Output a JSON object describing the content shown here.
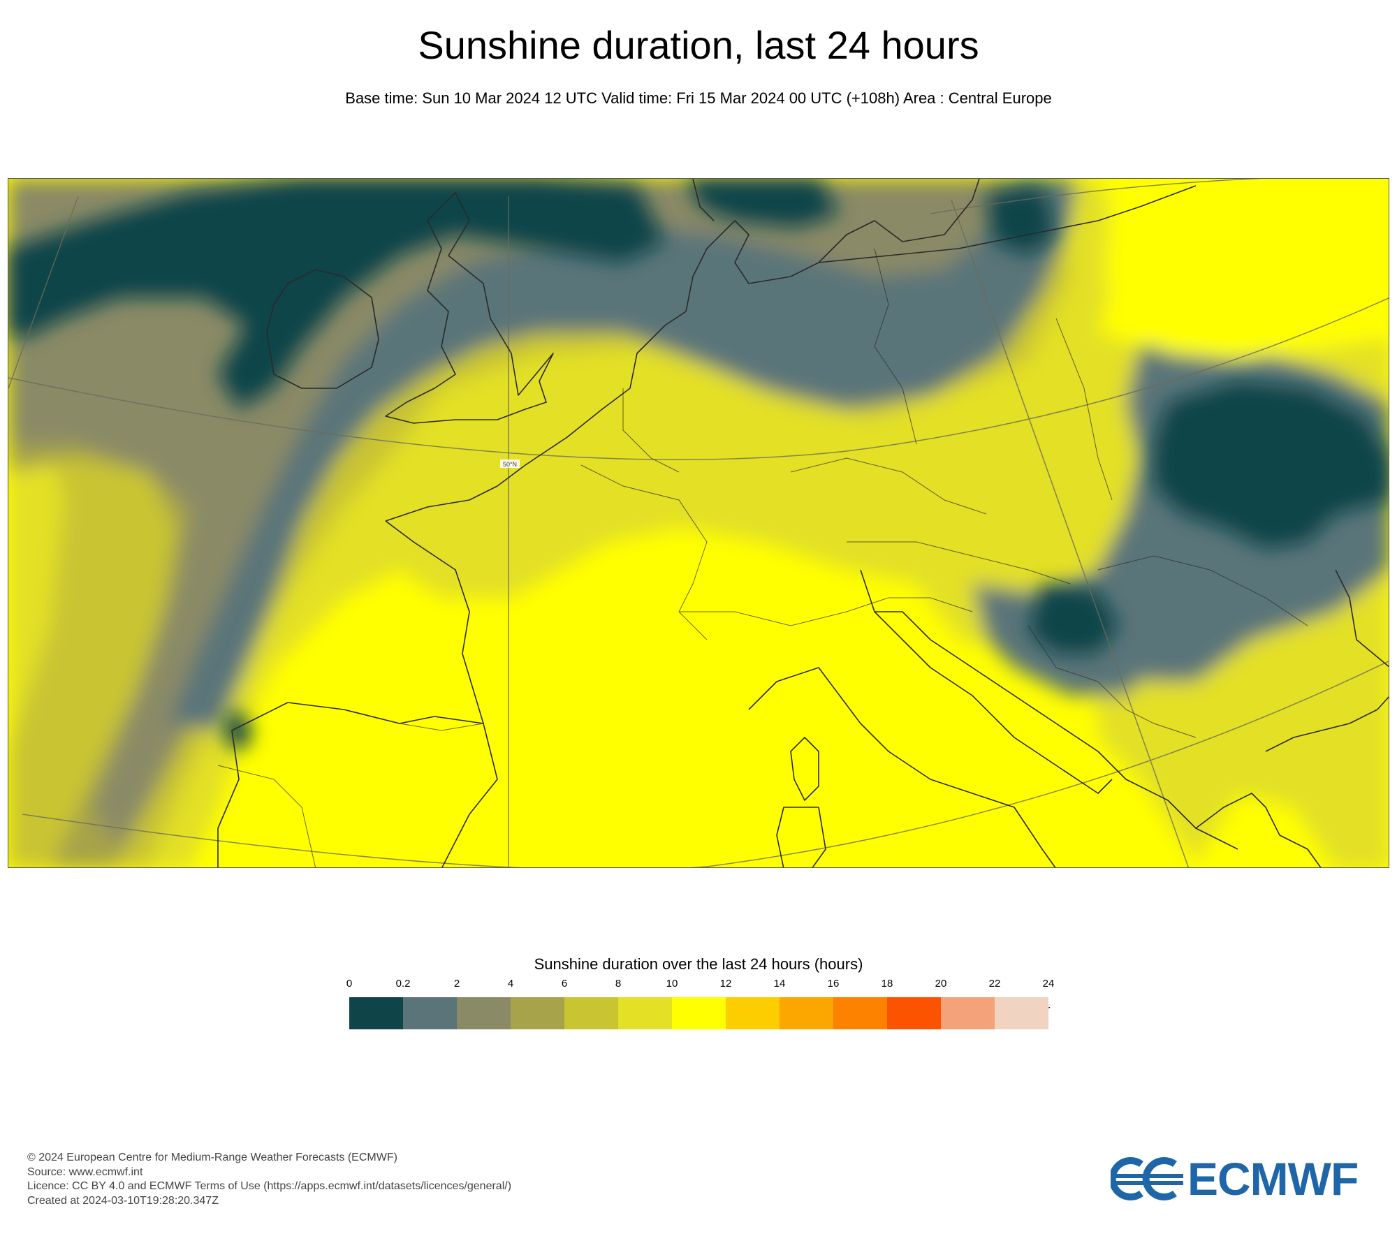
{
  "title": "Sunshine duration, last 24 hours",
  "subtitle": "Base time: Sun 10 Mar 2024 12 UTC Valid time: Fri 15 Mar 2024 00 UTC (+108h) Area : Central Europe",
  "map": {
    "graticule_label": "50°N",
    "region": "Central Europe",
    "field": "Sunshine duration (hours)"
  },
  "legend": {
    "title": "Sunshine duration over the last 24 hours (hours)",
    "unit": "-hr",
    "ticks": [
      "0",
      "0.2",
      "2",
      "4",
      "6",
      "8",
      "10",
      "12",
      "14",
      "16",
      "18",
      "20",
      "22",
      "24"
    ],
    "colors": [
      "#0f4449",
      "#5a7479",
      "#8a8a66",
      "#a6a34a",
      "#c9c431",
      "#e3e026",
      "#ffff00",
      "#fcce00",
      "#fca600",
      "#fc8200",
      "#fc5300",
      "#f4a27a",
      "#f0d3c0"
    ]
  },
  "footer": {
    "copyright": "© 2024 European Centre for Medium-Range Weather Forecasts (ECMWF)",
    "source": "Source: www.ecmwf.int",
    "licence": "Licence: CC BY 4.0 and ECMWF Terms of Use (https://apps.ecmwf.int/datasets/licences/general/)",
    "created": "Created at 2024-03-10T19:28:20.347Z"
  },
  "logo": {
    "text": "ECMWF",
    "color": "#1e66a8"
  }
}
